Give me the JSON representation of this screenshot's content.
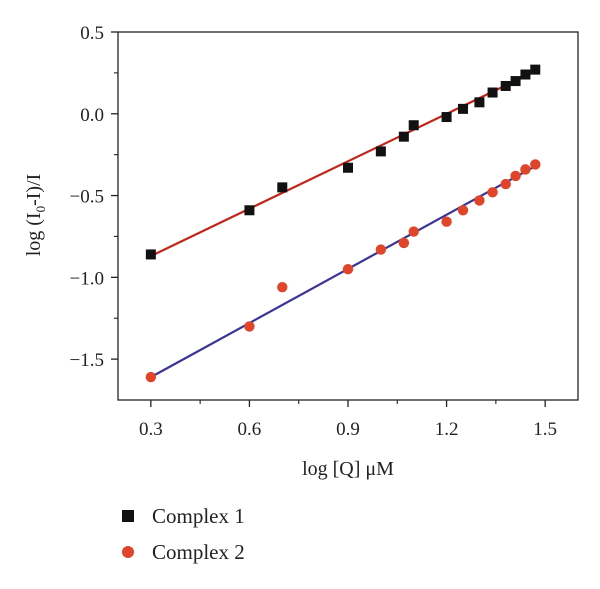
{
  "chart_data": {
    "type": "scatter",
    "xlabel": "log [Q] μM",
    "ylabel_parts": {
      "pre": "log (I",
      "sub": "0",
      "post": "-I)/I"
    },
    "xlim": [
      0.2,
      1.6
    ],
    "ylim": [
      -1.75,
      0.5
    ],
    "xticks": [
      0.3,
      0.6,
      0.9,
      1.2,
      1.5
    ],
    "xtick_labels": [
      "0.3",
      "0.6",
      "0.9",
      "1.2",
      "1.5"
    ],
    "yticks": [
      0.5,
      0.0,
      -0.5,
      -1.0,
      -1.5
    ],
    "ytick_labels": [
      "0.5",
      "0.0",
      "−0.5",
      "−1.0",
      "−1.5"
    ],
    "legend_position": "bottom-left, below plot",
    "series": [
      {
        "name": "Complex 1",
        "marker": "square",
        "color": "#111111",
        "fit_color": "#c0271b",
        "fit": {
          "x0": 0.3,
          "y0": -0.87,
          "x1": 1.47,
          "y1": 0.26
        },
        "points": [
          [
            0.3,
            -0.86
          ],
          [
            0.6,
            -0.59
          ],
          [
            0.7,
            -0.45
          ],
          [
            0.9,
            -0.33
          ],
          [
            1.0,
            -0.23
          ],
          [
            1.07,
            -0.14
          ],
          [
            1.1,
            -0.07
          ],
          [
            1.2,
            -0.02
          ],
          [
            1.25,
            0.03
          ],
          [
            1.3,
            0.07
          ],
          [
            1.34,
            0.13
          ],
          [
            1.38,
            0.17
          ],
          [
            1.41,
            0.2
          ],
          [
            1.44,
            0.24
          ],
          [
            1.47,
            0.27
          ]
        ]
      },
      {
        "name": "Complex 2",
        "marker": "circle",
        "color": "#e0452a",
        "fit_color": "#3a3496",
        "fit": {
          "x0": 0.3,
          "y0": -1.61,
          "x1": 1.47,
          "y1": -0.32
        },
        "points": [
          [
            0.3,
            -1.61
          ],
          [
            0.6,
            -1.3
          ],
          [
            0.7,
            -1.06
          ],
          [
            0.9,
            -0.95
          ],
          [
            1.0,
            -0.83
          ],
          [
            1.07,
            -0.79
          ],
          [
            1.1,
            -0.72
          ],
          [
            1.2,
            -0.66
          ],
          [
            1.25,
            -0.59
          ],
          [
            1.3,
            -0.53
          ],
          [
            1.34,
            -0.48
          ],
          [
            1.38,
            -0.43
          ],
          [
            1.41,
            -0.38
          ],
          [
            1.44,
            -0.34
          ],
          [
            1.47,
            -0.31
          ]
        ]
      }
    ]
  }
}
